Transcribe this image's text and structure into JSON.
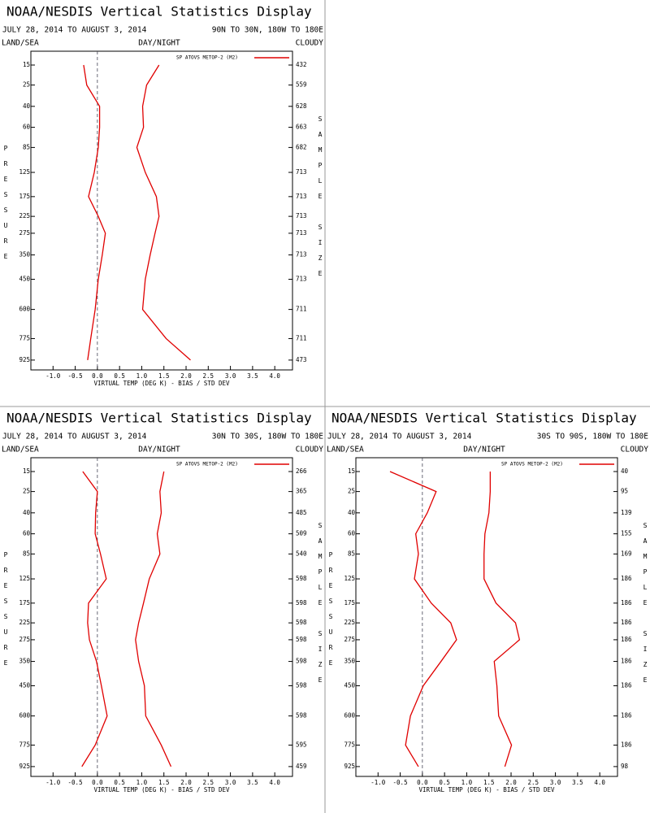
{
  "chart_data": [
    {
      "type": "line",
      "title": "NOAA/NESDIS Vertical Statistics Display",
      "subtitle": "JULY 28, 2014 TO AUGUST 3, 2014",
      "region": "90N TO 30N, 180W TO 180E",
      "land_sea": "LAND/SEA",
      "day_night": "DAY/NIGHT",
      "cloud": "CLOUDY",
      "ylabel": "PRESSURE",
      "y2label": "SAMPLE SIZE",
      "xlabel": "VIRTUAL TEMP (DEG K) - BIAS / STD DEV",
      "y_scale": "power",
      "y_exponent": 0.3,
      "ylim": [
        1000,
        10
      ],
      "y": [
        15,
        25,
        40,
        60,
        85,
        125,
        175,
        225,
        275,
        350,
        450,
        600,
        775,
        925
      ],
      "yticks": [
        15,
        25,
        40,
        60,
        85,
        125,
        175,
        225,
        275,
        350,
        450,
        600,
        775,
        925
      ],
      "sample_size": [
        432,
        559,
        628,
        663,
        682,
        713,
        713,
        713,
        713,
        713,
        713,
        711,
        711,
        473
      ],
      "xlim": [
        -1.5,
        4.4
      ],
      "xticks": [
        {
          "value": -1,
          "label": "-1.0"
        },
        -0.5,
        {
          "value": 0,
          "label": "0.0"
        },
        0.5,
        {
          "value": 1,
          "label": "1.0"
        },
        1.5,
        {
          "value": 2,
          "label": "2.0"
        },
        2.5,
        {
          "value": 3,
          "label": "3.0"
        },
        3.5,
        {
          "value": 4,
          "label": "4.0"
        }
      ],
      "series": [
        {
          "name": "SP ATOVS METOP-2 (M2)",
          "color": "#e00000",
          "values": [
            -0.31,
            -0.24,
            0.05,
            0.05,
            0.02,
            -0.07,
            -0.2,
            0.02,
            0.18,
            0.11,
            0.02,
            -0.05,
            -0.15,
            -0.22
          ],
          "std_dev": [
            1.39,
            1.11,
            1.02,
            1.04,
            0.89,
            1.08,
            1.33,
            1.39,
            1.3,
            1.19,
            1.08,
            1.02,
            1.55,
            2.1
          ]
        }
      ]
    },
    {
      "type": "line",
      "title": "NOAA/NESDIS Vertical Statistics Display",
      "subtitle": "JULY 28, 2014 TO AUGUST 3, 2014",
      "region": "30N TO 30S, 180W TO 180E",
      "land_sea": "LAND/SEA",
      "day_night": "DAY/NIGHT",
      "cloud": "CLOUDY",
      "ylabel": "PRESSURE",
      "y2label": "SAMPLE SIZE",
      "xlabel": "VIRTUAL TEMP (DEG K) - BIAS / STD DEV",
      "y_scale": "power",
      "y_exponent": 0.3,
      "ylim": [
        1000,
        10
      ],
      "y": [
        15,
        25,
        40,
        60,
        85,
        125,
        175,
        225,
        275,
        350,
        450,
        600,
        775,
        925
      ],
      "yticks": [
        15,
        25,
        40,
        60,
        85,
        125,
        175,
        225,
        275,
        350,
        450,
        600,
        775,
        925
      ],
      "sample_size": [
        266,
        365,
        485,
        509,
        540,
        598,
        598,
        598,
        598,
        598,
        598,
        598,
        595,
        459
      ],
      "xlim": [
        -1.5,
        4.4
      ],
      "xticks": [
        {
          "value": -1,
          "label": "-1.0"
        },
        -0.5,
        {
          "value": 0,
          "label": "0.0"
        },
        0.5,
        {
          "value": 1,
          "label": "1.0"
        },
        1.5,
        {
          "value": 2,
          "label": "2.0"
        },
        2.5,
        {
          "value": 3,
          "label": "3.0"
        },
        3.5,
        {
          "value": 4,
          "label": "4.0"
        }
      ],
      "series": [
        {
          "name": "SP ATOVS METOP-2 (M2)",
          "color": "#e00000",
          "values": [
            -0.33,
            0.0,
            -0.04,
            -0.05,
            0.07,
            0.2,
            -0.2,
            -0.22,
            -0.18,
            -0.02,
            0.09,
            0.22,
            -0.05,
            -0.35
          ],
          "std_dev": [
            1.5,
            1.41,
            1.44,
            1.35,
            1.41,
            1.17,
            1.04,
            0.93,
            0.86,
            0.93,
            1.06,
            1.09,
            1.44,
            1.66
          ]
        }
      ]
    },
    {
      "type": "line",
      "title": "NOAA/NESDIS Vertical Statistics Display",
      "subtitle": "JULY 28, 2014 TO AUGUST 3, 2014",
      "region": "30S TO 90S, 180W TO 180E",
      "land_sea": "LAND/SEA",
      "day_night": "DAY/NIGHT",
      "cloud": "CLOUDY",
      "ylabel": "PRESSURE",
      "y2label": "SAMPLE SIZE",
      "xlabel": "VIRTUAL TEMP (DEG K) - BIAS / STD DEV",
      "y_scale": "power",
      "y_exponent": 0.3,
      "ylim": [
        1000,
        10
      ],
      "y": [
        15,
        25,
        40,
        60,
        85,
        125,
        175,
        225,
        275,
        350,
        450,
        600,
        775,
        925
      ],
      "yticks": [
        15,
        25,
        40,
        60,
        85,
        125,
        175,
        225,
        275,
        350,
        450,
        600,
        775,
        925
      ],
      "sample_size": [
        40,
        95,
        139,
        155,
        169,
        186,
        186,
        186,
        186,
        186,
        186,
        186,
        186,
        98
      ],
      "xlim": [
        -1.5,
        4.4
      ],
      "xticks": [
        {
          "value": -1,
          "label": "-1.0"
        },
        -0.5,
        {
          "value": 0,
          "label": "0.0"
        },
        0.5,
        {
          "value": 1,
          "label": "1.0"
        },
        1.5,
        {
          "value": 2,
          "label": "2.0"
        },
        2.5,
        {
          "value": 3,
          "label": "3.0"
        },
        3.5,
        {
          "value": 4,
          "label": "4.0"
        }
      ],
      "series": [
        {
          "name": "SP ATOVS METOP-2 (M2)",
          "color": "#e00000",
          "values": [
            -0.73,
            0.31,
            0.11,
            -0.15,
            -0.09,
            -0.18,
            0.2,
            0.64,
            0.77,
            0.42,
            0.02,
            -0.27,
            -0.38,
            -0.09
          ],
          "std_dev": [
            1.53,
            1.53,
            1.5,
            1.41,
            1.39,
            1.39,
            1.66,
            2.1,
            2.19,
            1.62,
            1.68,
            1.72,
            2.01,
            1.86
          ]
        }
      ]
    }
  ]
}
